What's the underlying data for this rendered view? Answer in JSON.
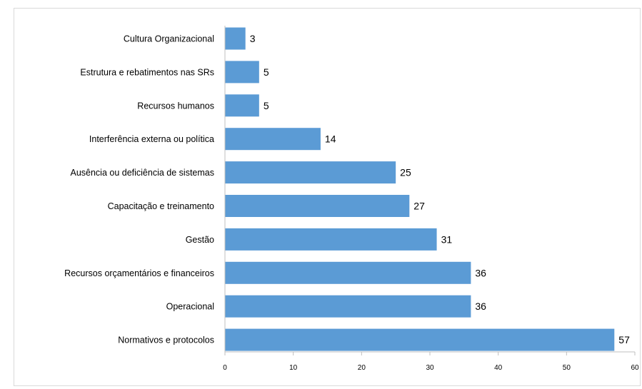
{
  "chart_data": {
    "type": "bar",
    "orientation": "horizontal",
    "categories": [
      "Cultura Organizacional",
      "Estrutura e rebatimentos nas SRs",
      "Recursos humanos",
      "Interferência externa ou política",
      "Ausência ou deficiência de sistemas",
      "Capacitação e treinamento",
      "Gestão",
      "Recursos orçamentários e financeiros",
      "Operacional",
      "Normativos e protocolos"
    ],
    "values": [
      3,
      5,
      5,
      14,
      25,
      27,
      31,
      36,
      36,
      57
    ],
    "title": "",
    "xlabel": "",
    "ylabel": "",
    "xlim": [
      0,
      60
    ],
    "ticks": [
      0,
      10,
      20,
      30,
      40,
      50,
      60
    ],
    "bar_color": "#5b9bd5",
    "grid": false,
    "legend": "none",
    "data_labels": true
  }
}
